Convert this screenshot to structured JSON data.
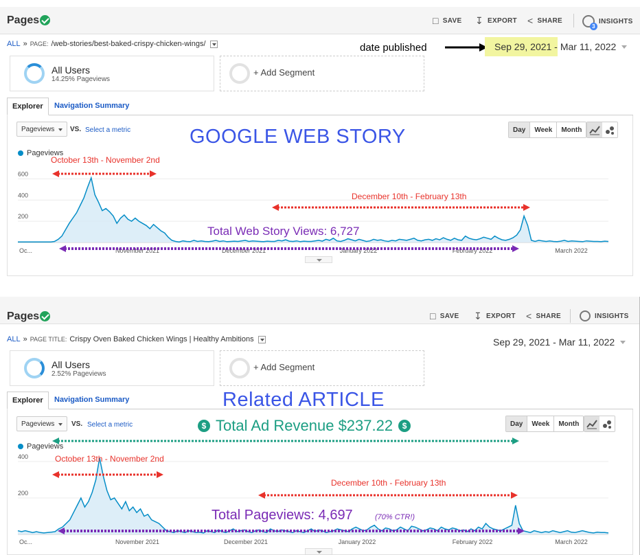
{
  "panels": [
    {
      "title": "Pages",
      "toolbar": {
        "save": "SAVE",
        "export": "EXPORT",
        "share": "SHARE",
        "insights": "INSIGHTS",
        "insights_badge": "3"
      },
      "breadcrumb": {
        "all": "ALL",
        "sep": "»",
        "dim_label": "PAGE:",
        "value": "/web-stories/best-baked-crispy-chicken-wings/"
      },
      "annotation_date": "date published",
      "date_start": "Sep 29, 2021 -",
      "date_end": "Mar 11, 2022",
      "segment": {
        "title": "All Users",
        "sub": "14.25% Pageviews",
        "add": "+ Add Segment"
      },
      "tabs": {
        "explorer": "Explorer",
        "nav": "Navigation Summary"
      },
      "metric_select": "Pageviews",
      "vs": "VS.",
      "select_metric": "Select a metric",
      "granularity": [
        "Day",
        "Week",
        "Month"
      ],
      "big_title": "GOOGLE WEB STORY",
      "legend": "Pageviews",
      "annotations": {
        "range1": "October 13th - November 2nd",
        "range2": "December 10th - February 13th",
        "total": "Total Web Story Views: 6,727"
      },
      "chart_data": {
        "type": "area",
        "series": [
          {
            "name": "Pageviews",
            "values": [
              5,
              5,
              5,
              5,
              5,
              5,
              5,
              5,
              5,
              5,
              10,
              30,
              60,
              120,
              180,
              230,
              280,
              350,
              420,
              520,
              610,
              450,
              380,
              300,
              320,
              290,
              250,
              180,
              230,
              260,
              220,
              200,
              230,
              200,
              180,
              160,
              130,
              170,
              140,
              110,
              90,
              50,
              20,
              10,
              5,
              15,
              10,
              8,
              20,
              10,
              15,
              10,
              8,
              12,
              20,
              10,
              15,
              8,
              10,
              12,
              10,
              15,
              20,
              10,
              15,
              12,
              10,
              8,
              12,
              10,
              10,
              20,
              15,
              25,
              12,
              10,
              15,
              8,
              12,
              10,
              10,
              15,
              20,
              12,
              30,
              20,
              40,
              15,
              10,
              20,
              35,
              25,
              15,
              30,
              20,
              10,
              15,
              30,
              20,
              25,
              15,
              10,
              20,
              15,
              30,
              25,
              20,
              30,
              40,
              20,
              15,
              25,
              30,
              20,
              35,
              25,
              45,
              30,
              20,
              40,
              25,
              20,
              60,
              40,
              30,
              25,
              35,
              50,
              40,
              30,
              60,
              40,
              25,
              20,
              30,
              45,
              70,
              120,
              250,
              160,
              20,
              10,
              20,
              15,
              10,
              15,
              10,
              8,
              12,
              20,
              10,
              15,
              12,
              10,
              8,
              15,
              12,
              10,
              10,
              8,
              12,
              10
            ]
          }
        ],
        "x_tick_labels": [
          "Oc...",
          "November 2021",
          "December 2021",
          "January 2022",
          "February 2022",
          "March 2022"
        ],
        "y_tick_labels": [
          "600",
          "400",
          "200"
        ],
        "ylim": [
          0,
          700
        ],
        "grid": true
      }
    },
    {
      "title": "Pages",
      "toolbar": {
        "save": "SAVE",
        "export": "EXPORT",
        "share": "SHARE",
        "insights": "INSIGHTS"
      },
      "breadcrumb": {
        "all": "ALL",
        "sep": "»",
        "dim_label": "PAGE TITLE:",
        "value": "Crispy Oven Baked Chicken Wings | Healthy Ambitions"
      },
      "date_range": "Sep 29, 2021 - Mar 11, 2022",
      "segment": {
        "title": "All Users",
        "sub": "2.52% Pageviews",
        "add": "+ Add Segment"
      },
      "tabs": {
        "explorer": "Explorer",
        "nav": "Navigation Summary"
      },
      "metric_select": "Pageviews",
      "vs": "VS.",
      "select_metric": "Select a metric",
      "granularity": [
        "Day",
        "Week",
        "Month"
      ],
      "big_title": "Related ARTICLE",
      "legend": "Pageviews",
      "annotations": {
        "revenue": "Total Ad Revenue $237.22",
        "dollar": "$",
        "range1": "October 13th - November 2nd",
        "range2": "December 10th - February 13th",
        "total_main": "Total Pageviews: 4,697",
        "total_ctr": "(70% CTR!)"
      },
      "chart_data": {
        "type": "area",
        "series": [
          {
            "name": "Pageviews",
            "values": [
              20,
              15,
              20,
              15,
              10,
              15,
              10,
              8,
              10,
              12,
              15,
              30,
              40,
              60,
              80,
              120,
              160,
              200,
              150,
              180,
              230,
              300,
              420,
              320,
              240,
              190,
              200,
              170,
              140,
              180,
              130,
              150,
              120,
              140,
              100,
              110,
              80,
              70,
              60,
              40,
              20,
              15,
              10,
              20,
              15,
              10,
              20,
              15,
              10,
              12,
              8,
              20,
              15,
              10,
              25,
              15,
              10,
              20,
              30,
              15,
              20,
              25,
              15,
              10,
              20,
              25,
              15,
              10,
              30,
              20,
              15,
              25,
              20,
              15,
              10,
              20,
              15,
              10,
              20,
              30,
              15,
              25,
              20,
              10,
              15,
              20,
              30,
              25,
              20,
              15,
              30,
              40,
              30,
              20,
              25,
              40,
              50,
              30,
              20,
              35,
              30,
              20,
              25,
              40,
              30,
              20,
              45,
              40,
              30,
              20,
              25,
              35,
              30,
              20,
              40,
              30,
              25,
              35,
              30,
              20,
              25,
              15,
              30,
              20,
              40,
              30,
              60,
              40,
              30,
              25,
              20,
              30,
              40,
              50,
              160,
              60,
              20,
              15,
              10,
              20,
              15,
              10,
              15,
              12,
              20,
              15,
              10,
              15,
              20,
              12,
              10,
              15,
              20,
              15,
              10,
              8,
              12,
              10,
              10,
              8
            ]
          }
        ],
        "x_tick_labels": [
          "Oc...",
          "November 2021",
          "December 2021",
          "January 2022",
          "February 2022",
          "March 2022"
        ],
        "y_tick_labels": [
          "400",
          "200"
        ],
        "ylim": [
          0,
          460
        ],
        "grid": true
      }
    }
  ],
  "colors": {
    "line": "#058dc7",
    "fill": "#d7ebf7",
    "red": "#e8322b",
    "purple": "#7a2bb5",
    "green": "#1c9e83",
    "title_blue": "#3a55e6"
  }
}
